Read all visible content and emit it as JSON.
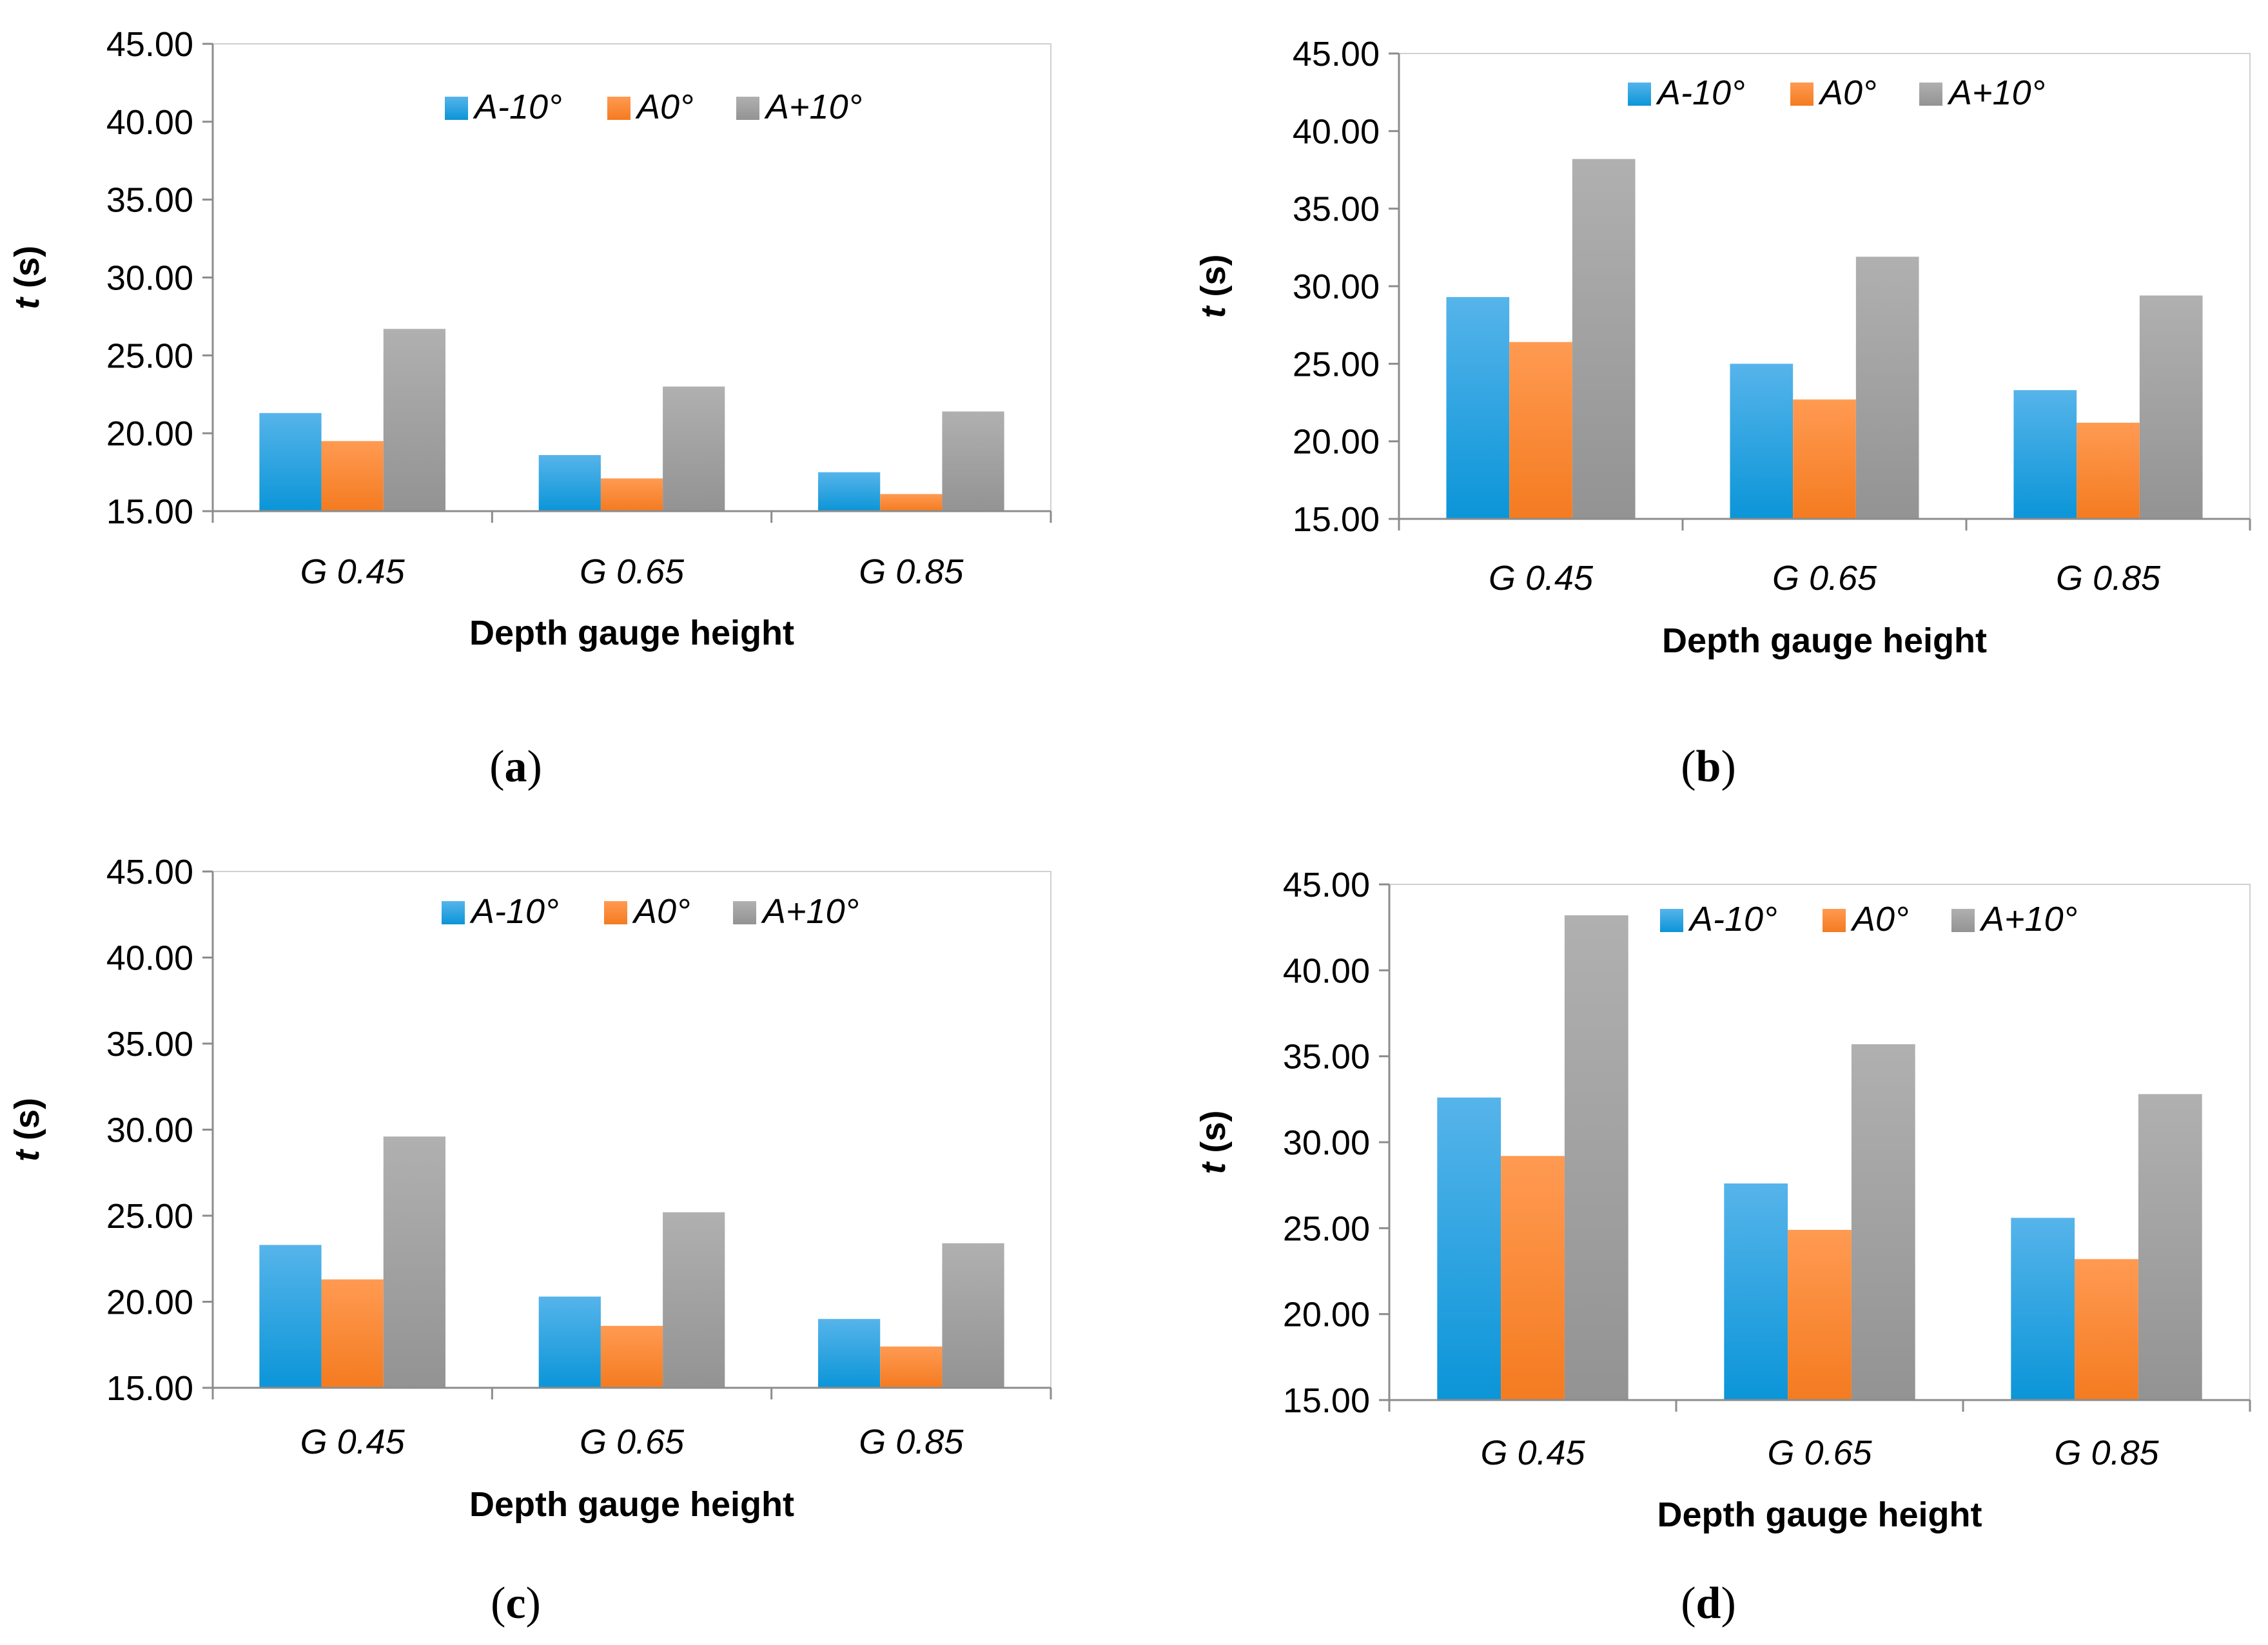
{
  "colors": {
    "series_a_minus10": "#0b95d8",
    "series_a0": "#f47b20",
    "series_a_plus10": "#9b9b9b",
    "axis": "#8c8c8c",
    "plot_border": "#d0d0d0"
  },
  "chart_data": [
    {
      "id": "a",
      "panel_label": "a",
      "type": "bar",
      "title": "",
      "xlabel": "Depth gauge height",
      "ylabel": "t (s)",
      "ylabel_var": "t",
      "ylabel_unit": " (s)",
      "ylim": [
        15,
        45
      ],
      "yticks": [
        "15.00",
        "20.00",
        "25.00",
        "30.00",
        "35.00",
        "40.00",
        "45.00"
      ],
      "categories": [
        "G 0.45",
        "G 0.65",
        "G 0.85"
      ],
      "legend_position": "top",
      "series": [
        {
          "name": "A-10°",
          "values": [
            21.3,
            18.6,
            17.5
          ]
        },
        {
          "name": "A0°",
          "values": [
            19.5,
            17.1,
            16.1
          ]
        },
        {
          "name": "A+10°",
          "values": [
            26.7,
            23.0,
            21.4
          ]
        }
      ]
    },
    {
      "id": "b",
      "panel_label": "b",
      "type": "bar",
      "title": "",
      "xlabel": "Depth gauge height",
      "ylabel": "t (s)",
      "ylabel_var": "t",
      "ylabel_unit": " (s)",
      "ylim": [
        15,
        45
      ],
      "yticks": [
        "15.00",
        "20.00",
        "25.00",
        "30.00",
        "35.00",
        "40.00",
        "45.00"
      ],
      "categories": [
        "G 0.45",
        "G 0.65",
        "G 0.85"
      ],
      "legend_position": "top",
      "series": [
        {
          "name": "A-10°",
          "values": [
            29.3,
            25.0,
            23.3
          ]
        },
        {
          "name": "A0°",
          "values": [
            26.4,
            22.7,
            21.2
          ]
        },
        {
          "name": "A+10°",
          "values": [
            38.2,
            31.9,
            29.4
          ]
        }
      ]
    },
    {
      "id": "c",
      "panel_label": "c",
      "type": "bar",
      "title": "",
      "xlabel": "Depth gauge height",
      "ylabel": "t (s)",
      "ylabel_var": "t",
      "ylabel_unit": " (s)",
      "ylim": [
        15,
        45
      ],
      "yticks": [
        "15.00",
        "20.00",
        "25.00",
        "30.00",
        "35.00",
        "40.00",
        "45.00"
      ],
      "categories": [
        "G 0.45",
        "G 0.65",
        "G 0.85"
      ],
      "legend_position": "top",
      "series": [
        {
          "name": "A-10°",
          "values": [
            23.3,
            20.3,
            19.0
          ]
        },
        {
          "name": "A0°",
          "values": [
            21.3,
            18.6,
            17.4
          ]
        },
        {
          "name": "A+10°",
          "values": [
            29.6,
            25.2,
            23.4
          ]
        }
      ]
    },
    {
      "id": "d",
      "panel_label": "d",
      "type": "bar",
      "title": "",
      "xlabel": "Depth gauge height",
      "ylabel": "t (s)",
      "ylabel_var": "t",
      "ylabel_unit": " (s)",
      "ylim": [
        15,
        45
      ],
      "yticks": [
        "15.00",
        "20.00",
        "25.00",
        "30.00",
        "35.00",
        "40.00",
        "45.00"
      ],
      "categories": [
        "G 0.45",
        "G 0.65",
        "G 0.85"
      ],
      "legend_position": "top",
      "series": [
        {
          "name": "A-10°",
          "values": [
            32.6,
            27.6,
            25.6
          ]
        },
        {
          "name": "A0°",
          "values": [
            29.2,
            24.9,
            23.2
          ]
        },
        {
          "name": "A+10°",
          "values": [
            43.2,
            35.7,
            32.8
          ]
        }
      ]
    }
  ]
}
